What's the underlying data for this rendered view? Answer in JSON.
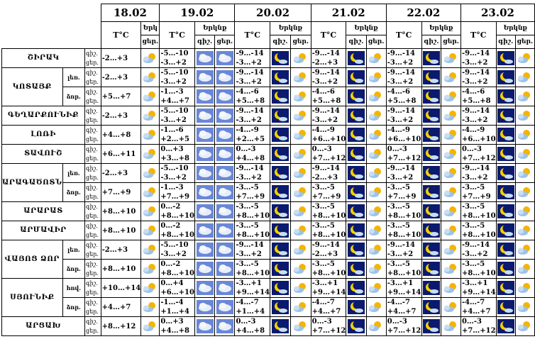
{
  "header": {
    "dates": [
      "18.02",
      "19.02",
      "20.02",
      "21.02",
      "22.02",
      "23.02"
    ],
    "temp_label": "T°C",
    "cloud_label": "Երկնք",
    "cloud_label_short": "Երկ",
    "night_label": "գիշ.",
    "day_label": "ցեր."
  },
  "row_labels": {
    "night": "գիշ.",
    "day": "ցեր."
  },
  "icon_types": {
    "sun": "sun-cloud-icon",
    "cloud": "cloudy-icon",
    "moon": "moon-night-icon",
    "moon_cloud": "moon-cloud-icon"
  },
  "regions": [
    {
      "name": "ՇԻՐԱԿ",
      "rows": [
        {
          "zone": "",
          "temps": [
            "-2…+3",
            "-5…-10\n-3…+2",
            "-9…-14\n-3…+2",
            "-9…-14\n-2…+3",
            "-9…-14\n-3…+2",
            "-9…-14\n-3…+2"
          ]
        }
      ]
    },
    {
      "name": "ԿՈՏԱՅՔ",
      "rows": [
        {
          "zone": "լեռ.",
          "temps": [
            "-2…+3",
            "-5…-10\n-3…+2",
            "-9…-14\n-3…+2",
            "-9…-14\n-3…+2",
            "-9…-14\n-3…+2",
            "-9…-14\n-3…+2"
          ]
        },
        {
          "zone": "ձոր.",
          "temps": [
            "+5…+7",
            "-1…-3\n+4…+7",
            "-4…-6\n+5…+8",
            "-4…-6\n+5…+8",
            "-4…-6\n+5…+8",
            "-4…-6\n+5…+8"
          ]
        }
      ]
    },
    {
      "name": "ԳԵՂԱՐՔՈՒՆԻՔ",
      "rows": [
        {
          "zone": "",
          "temps": [
            "-2…+3",
            "-5…-10\n-3…+2",
            "-9…-14\n-3…+2",
            "-9…-14\n-3…+2",
            "-9…-14\n-3…+2",
            "-9…-14\n-3…+2"
          ]
        }
      ]
    },
    {
      "name": "ԼՈՌԻ",
      "rows": [
        {
          "zone": "",
          "temps": [
            "+4…+8",
            "-1…-6\n+2…+5",
            "-4…-9\n+2…+5",
            "-4…-9\n+6…+10",
            "-4…-9\n+6…+10",
            "-4…-9\n+6…+10"
          ]
        }
      ]
    },
    {
      "name": "ՏԱՎՈՒՇ",
      "rows": [
        {
          "zone": "",
          "temps": [
            "+6…+11",
            "0…+3\n+3…+8",
            "0…-3\n+4…+8",
            "0…-3\n+7…+12",
            "0…-3\n+7…+12",
            "0…-3\n+7…+12"
          ]
        }
      ]
    },
    {
      "name": "ԱՐԱԳԱԾՈՏՆ",
      "rows": [
        {
          "zone": "լեռ.",
          "temps": [
            "-2…+3",
            "-5…-10\n-3…+2",
            "-9…-14\n-3…+2",
            "-9…-14\n-2…+3",
            "-9…-14\n-3…+2",
            "-9…-14\n-3…+2"
          ]
        },
        {
          "zone": "ձոր.",
          "temps": [
            "+7…+9",
            "-1…-3\n+7…+9",
            "-3…-5\n+7…+9",
            "-3…-5\n+7…+9",
            "-3…-5\n+7…+9",
            "-3…-5\n+7…+9"
          ]
        }
      ]
    },
    {
      "name": "ԱՐԱՐԱՏ",
      "rows": [
        {
          "zone": "",
          "temps": [
            "+8…+10",
            "0…-2\n+8…+10",
            "-3…-5\n+8…+10",
            "-3…-5\n+8…+10",
            "-3…-5\n+8…+10",
            "-3…-5\n+8…+10"
          ]
        }
      ]
    },
    {
      "name": "ԱՐՄԱՎԻՐ",
      "rows": [
        {
          "zone": "",
          "temps": [
            "+8…+10",
            "0…-2\n+8…+10",
            "-3…-5\n+8…+10",
            "-3…-5\n+8…+10",
            "-3…-5\n+8…+10",
            "-3…-5\n+8…+10"
          ]
        }
      ]
    },
    {
      "name": "ՎԱՅՈՑ ՁՈՐ",
      "rows": [
        {
          "zone": "լեռ.",
          "temps": [
            "-2…+3",
            "-5…-10\n-3…+2",
            "-9…-14\n-3…+2",
            "-9…-14\n-2…+3",
            "-9…-14\n-3…+2",
            "-9…-14\n-3…+2"
          ]
        },
        {
          "zone": "ձոր.",
          "temps": [
            "+8…+10",
            "0…-2\n+8…+10",
            "-3…-5\n+8…+10",
            "-3…-5\n+8…+10",
            "-3…-5\n+8…+10",
            "-3…-5\n+8…+10"
          ]
        }
      ]
    },
    {
      "name": "ՍՅՈՒՆԻՔ",
      "rows": [
        {
          "zone": "հով.",
          "temps": [
            "+10…+14",
            "0…+4\n+6…+10",
            "-3…+1\n+9…+14",
            "-3…+1\n+9…+14",
            "-3…+1\n+9…+14",
            "-3…+1\n+9…+14"
          ]
        },
        {
          "zone": "ձոր.",
          "temps": [
            "+4…+7",
            "-1…-4\n+1…+4",
            "-4…-7\n+1…+4",
            "-4…-7\n+4…+7",
            "-4…-7\n+4…+7",
            "-4…-7\n+4…+7"
          ]
        }
      ]
    },
    {
      "name": "ԱՐՑԱԽ",
      "rows": [
        {
          "zone": "",
          "temps": [
            "+8…+12",
            "0…+3\n+4…+8",
            "0…-3\n+4…+8",
            "0…-3\n+7…+12",
            "0…-3\n+7…+12",
            "0…-3\n+7…+12"
          ]
        }
      ]
    }
  ]
}
